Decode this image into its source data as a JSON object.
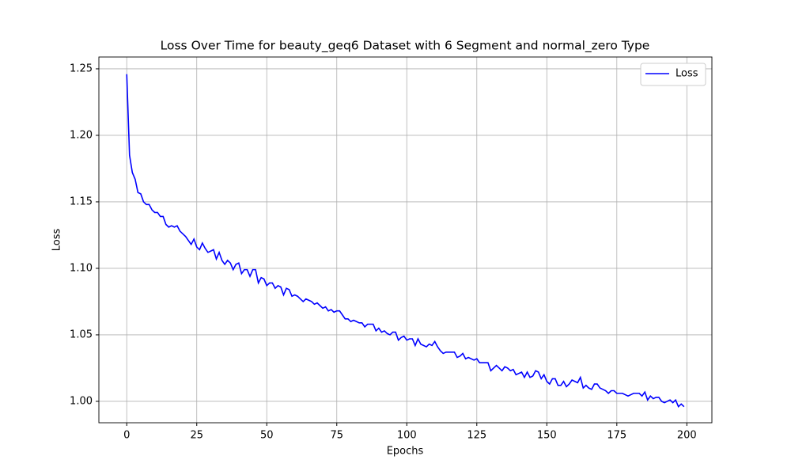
{
  "chart_data": {
    "type": "line",
    "title": "Loss Over Time for beauty_geq6 Dataset with 6 Segment and normal_zero Type",
    "x_label": "Epochs",
    "y_label": "Loss",
    "x": [
      0,
      1,
      2,
      3,
      4,
      5,
      6,
      7,
      8,
      9,
      10,
      11,
      12,
      13,
      14,
      15,
      16,
      17,
      18,
      19,
      20,
      21,
      22,
      23,
      24,
      25,
      26,
      27,
      28,
      29,
      30,
      31,
      32,
      33,
      34,
      35,
      36,
      37,
      38,
      39,
      40,
      41,
      42,
      43,
      44,
      45,
      46,
      47,
      48,
      49,
      50,
      51,
      52,
      53,
      54,
      55,
      56,
      57,
      58,
      59,
      60,
      61,
      62,
      63,
      64,
      65,
      66,
      67,
      68,
      69,
      70,
      71,
      72,
      73,
      74,
      75,
      76,
      77,
      78,
      79,
      80,
      81,
      82,
      83,
      84,
      85,
      86,
      87,
      88,
      89,
      90,
      91,
      92,
      93,
      94,
      95,
      96,
      97,
      98,
      99,
      100,
      101,
      102,
      103,
      104,
      105,
      106,
      107,
      108,
      109,
      110,
      111,
      112,
      113,
      114,
      115,
      116,
      117,
      118,
      119,
      120,
      121,
      122,
      123,
      124,
      125,
      126,
      127,
      128,
      129,
      130,
      131,
      132,
      133,
      134,
      135,
      136,
      137,
      138,
      139,
      140,
      141,
      142,
      143,
      144,
      145,
      146,
      147,
      148,
      149,
      150,
      151,
      152,
      153,
      154,
      155,
      156,
      157,
      158,
      159,
      160,
      161,
      162,
      163,
      164,
      165,
      166,
      167,
      168,
      169,
      170,
      171,
      172,
      173,
      174,
      175,
      176,
      177,
      178,
      179,
      180,
      181,
      182,
      183,
      184,
      185,
      186,
      187,
      188,
      189,
      190,
      191,
      192,
      193,
      194,
      195,
      196,
      197,
      198,
      199
    ],
    "series": [
      {
        "name": "Loss",
        "color": "#0000ff",
        "values": [
          1.246,
          1.185,
          1.172,
          1.167,
          1.157,
          1.156,
          1.15,
          1.148,
          1.148,
          1.144,
          1.142,
          1.142,
          1.139,
          1.139,
          1.133,
          1.131,
          1.132,
          1.131,
          1.132,
          1.128,
          1.126,
          1.124,
          1.121,
          1.118,
          1.122,
          1.116,
          1.114,
          1.119,
          1.115,
          1.112,
          1.113,
          1.114,
          1.107,
          1.112,
          1.106,
          1.103,
          1.106,
          1.104,
          1.099,
          1.103,
          1.104,
          1.096,
          1.099,
          1.099,
          1.094,
          1.099,
          1.099,
          1.089,
          1.093,
          1.092,
          1.087,
          1.089,
          1.089,
          1.085,
          1.087,
          1.086,
          1.08,
          1.085,
          1.084,
          1.079,
          1.08,
          1.079,
          1.077,
          1.075,
          1.077,
          1.076,
          1.075,
          1.073,
          1.074,
          1.072,
          1.07,
          1.071,
          1.068,
          1.069,
          1.067,
          1.068,
          1.068,
          1.065,
          1.062,
          1.062,
          1.06,
          1.061,
          1.06,
          1.059,
          1.059,
          1.056,
          1.058,
          1.058,
          1.058,
          1.053,
          1.055,
          1.052,
          1.053,
          1.051,
          1.05,
          1.052,
          1.052,
          1.046,
          1.048,
          1.049,
          1.046,
          1.047,
          1.047,
          1.042,
          1.047,
          1.043,
          1.042,
          1.041,
          1.043,
          1.042,
          1.045,
          1.041,
          1.038,
          1.036,
          1.037,
          1.037,
          1.037,
          1.037,
          1.033,
          1.034,
          1.036,
          1.032,
          1.033,
          1.032,
          1.031,
          1.032,
          1.029,
          1.029,
          1.029,
          1.029,
          1.023,
          1.025,
          1.027,
          1.025,
          1.023,
          1.026,
          1.025,
          1.023,
          1.024,
          1.02,
          1.021,
          1.022,
          1.018,
          1.022,
          1.018,
          1.019,
          1.023,
          1.022,
          1.017,
          1.02,
          1.015,
          1.013,
          1.017,
          1.017,
          1.012,
          1.012,
          1.015,
          1.011,
          1.013,
          1.016,
          1.015,
          1.014,
          1.018,
          1.01,
          1.012,
          1.01,
          1.009,
          1.013,
          1.013,
          1.01,
          1.009,
          1.008,
          1.006,
          1.008,
          1.008,
          1.006,
          1.006,
          1.006,
          1.005,
          1.004,
          1.005,
          1.006,
          1.006,
          1.006,
          1.004,
          1.007,
          1.001,
          1.004,
          1.002,
          1.003,
          1.003,
          1.0,
          0.999,
          1.0,
          1.001,
          0.999,
          1.001,
          0.996,
          0.998,
          0.996
        ]
      }
    ],
    "xlim": [
      -9.95,
      208.95
    ],
    "ylim": [
      0.9839,
      1.2589
    ],
    "xticks": [
      0,
      25,
      50,
      75,
      100,
      125,
      150,
      175,
      200
    ],
    "yticks": [
      {
        "value": 1.0,
        "label": "1.00"
      },
      1.05,
      {
        "value": 1.1,
        "label": "1.10"
      },
      1.15,
      {
        "value": 1.2,
        "label": "1.20"
      },
      1.25
    ],
    "grid": true,
    "legend": "upper right"
  }
}
